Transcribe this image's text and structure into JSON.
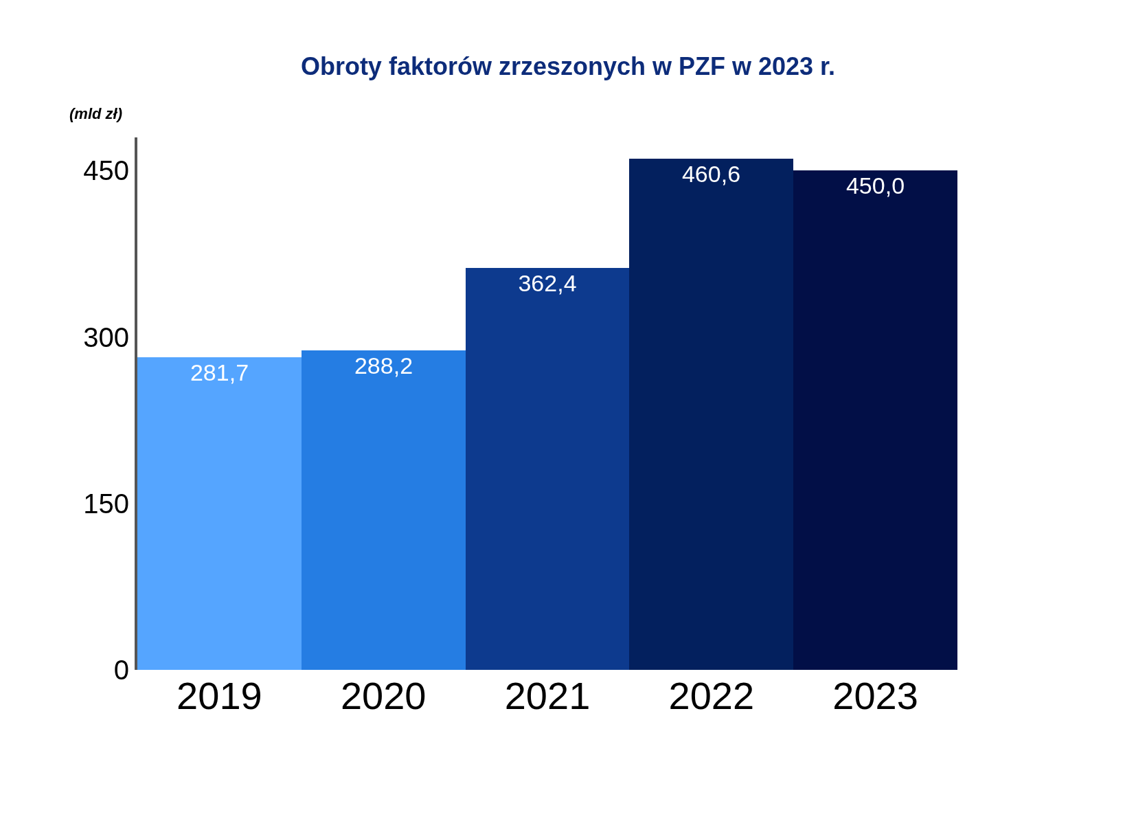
{
  "chart_data": {
    "type": "bar",
    "title": "Obroty faktorów zrzeszonych w PZF w 2023 r.",
    "ylabel": "(mld zł)",
    "categories": [
      "2019",
      "2020",
      "2021",
      "2022",
      "2023"
    ],
    "values": [
      281.7,
      288.2,
      362.4,
      460.6,
      450.0
    ],
    "value_labels": [
      "281,7",
      "288,2",
      "362,4",
      "460,6",
      "450,0"
    ],
    "colors": [
      "#55a5ff",
      "#257de3",
      "#0d3a8e",
      "#03205e",
      "#020f47"
    ],
    "ylim": [
      0,
      480
    ],
    "yticks": [
      0,
      150,
      300,
      450
    ],
    "legend": false
  }
}
